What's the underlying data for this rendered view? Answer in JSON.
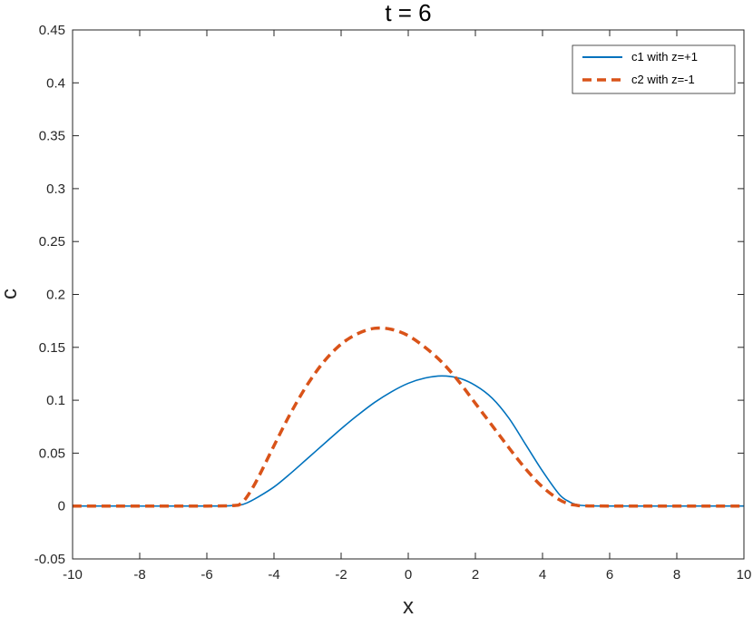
{
  "chart_data": {
    "type": "line",
    "title": "t = 6",
    "xlabel": "x",
    "ylabel": "c",
    "xlim": [
      -10,
      10
    ],
    "ylim": [
      -0.05,
      0.45
    ],
    "xticks": [
      -10,
      -8,
      -6,
      -4,
      -2,
      0,
      2,
      4,
      6,
      8,
      10
    ],
    "yticks": [
      -0.05,
      0,
      0.05,
      0.1,
      0.15,
      0.2,
      0.25,
      0.3,
      0.35,
      0.4,
      0.45
    ],
    "xtick_labels": [
      "-10",
      "-8",
      "-6",
      "-4",
      "-2",
      "0",
      "2",
      "4",
      "6",
      "8",
      "10"
    ],
    "ytick_labels": [
      "-0.05",
      "0",
      "0.05",
      "0.1",
      "0.15",
      "0.2",
      "0.25",
      "0.3",
      "0.35",
      "0.4",
      "0.45"
    ],
    "grid": false,
    "legend_position": "top-right",
    "series": [
      {
        "name": "c1 with z=+1",
        "color": "#0072BD",
        "line_style": "solid",
        "x": [
          -10,
          -6,
          -5.2,
          -5,
          -4.8,
          -4.5,
          -4,
          -3.5,
          -3,
          -2.5,
          -2,
          -1.5,
          -1,
          -0.5,
          0,
          0.5,
          1,
          1.5,
          2,
          2.5,
          3,
          3.5,
          4,
          4.5,
          4.8,
          5,
          5.2,
          6,
          10
        ],
        "y": [
          0,
          0,
          0.0005,
          0.001,
          0.003,
          0.008,
          0.018,
          0.031,
          0.045,
          0.059,
          0.073,
          0.086,
          0.098,
          0.108,
          0.116,
          0.121,
          0.123,
          0.121,
          0.114,
          0.102,
          0.083,
          0.058,
          0.033,
          0.011,
          0.004,
          0.0015,
          0.0005,
          0,
          0
        ]
      },
      {
        "name": "c2 with z=-1",
        "color": "#D95319",
        "line_style": "dashed",
        "x": [
          -10,
          -6,
          -5.2,
          -5,
          -4.8,
          -4.5,
          -4,
          -3.5,
          -3,
          -2.5,
          -2,
          -1.5,
          -1,
          -0.5,
          0,
          0.5,
          1,
          1.5,
          2,
          2.5,
          3,
          3.5,
          4,
          4.5,
          4.8,
          5,
          5.2,
          6,
          10
        ],
        "y": [
          0,
          0,
          0.0005,
          0.002,
          0.009,
          0.025,
          0.057,
          0.088,
          0.115,
          0.137,
          0.153,
          0.163,
          0.168,
          0.167,
          0.161,
          0.15,
          0.136,
          0.118,
          0.097,
          0.076,
          0.055,
          0.035,
          0.018,
          0.006,
          0.002,
          0.0008,
          0.0002,
          0,
          0
        ]
      }
    ]
  }
}
